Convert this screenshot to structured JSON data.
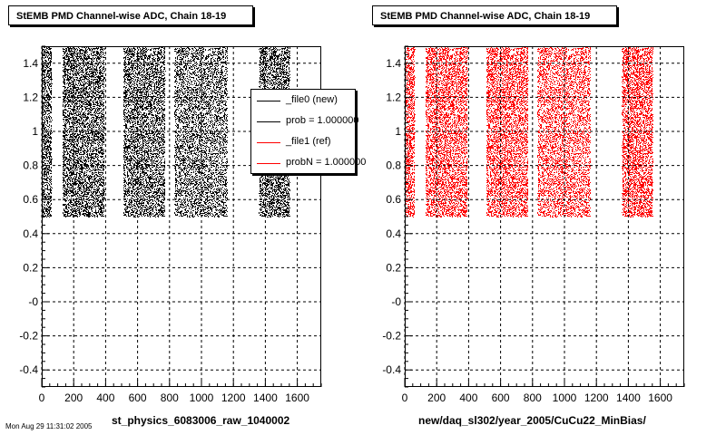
{
  "footer_text": "Mon Aug 29 11:31:02 2005",
  "chart_data": [
    {
      "type": "scatter",
      "title": "StEMB PMD Channel-wise ADC, Chain 18-19",
      "xlabel": "st_physics_6083006_raw_1040002",
      "ylabel": "",
      "xlim": [
        0,
        1750
      ],
      "ylim": [
        -0.5,
        1.5
      ],
      "xticks": [
        0,
        200,
        400,
        600,
        800,
        1000,
        1200,
        1400,
        1600
      ],
      "yticks": [
        -0.4,
        -0.2,
        0,
        0.2,
        0.4,
        0.6,
        0.8,
        1,
        1.2,
        1.4
      ],
      "ytick_labels": [
        "-0.4",
        "-0.2",
        "-0",
        "0.2",
        "0.4",
        "0.6",
        "0.8",
        "1",
        "1.2",
        "1.4"
      ],
      "grid": true,
      "series_color": "#000000",
      "point_y_range": [
        0.5,
        1.5
      ],
      "x_bands": [
        [
          0,
          60
        ],
        [
          130,
          390
        ],
        [
          510,
          770
        ],
        [
          830,
          1160
        ],
        [
          1360,
          1550
        ]
      ],
      "legend": {
        "placement": "top-right",
        "entries": [
          {
            "label": "_file0 (new)",
            "color": "#000000"
          },
          {
            "label": "prob = 1.000000",
            "color": "#000000"
          },
          {
            "label": "_file1 (ref)",
            "color": "#ff0000"
          },
          {
            "label": "probN = 1.000000",
            "color": "#ff0000"
          }
        ]
      }
    },
    {
      "type": "scatter",
      "title": "StEMB PMD Channel-wise ADC, Chain 18-19",
      "xlabel": "new/daq_sl302/year_2005/CuCu22_MinBias/",
      "ylabel": "",
      "xlim": [
        0,
        1750
      ],
      "ylim": [
        -0.5,
        1.5
      ],
      "xticks": [
        0,
        200,
        400,
        600,
        800,
        1000,
        1200,
        1400,
        1600
      ],
      "yticks": [
        -0.4,
        -0.2,
        0,
        0.2,
        0.4,
        0.6,
        0.8,
        1,
        1.2,
        1.4
      ],
      "ytick_labels": [
        "-0.4",
        "-0.2",
        "-0",
        "0.2",
        "0.4",
        "0.6",
        "0.8",
        "1",
        "1.2",
        "1.4"
      ],
      "grid": true,
      "series_color": "#ff0000",
      "point_y_range": [
        0.5,
        1.5
      ],
      "x_bands": [
        [
          0,
          60
        ],
        [
          130,
          390
        ],
        [
          510,
          770
        ],
        [
          830,
          1160
        ],
        [
          1360,
          1550
        ]
      ]
    }
  ]
}
